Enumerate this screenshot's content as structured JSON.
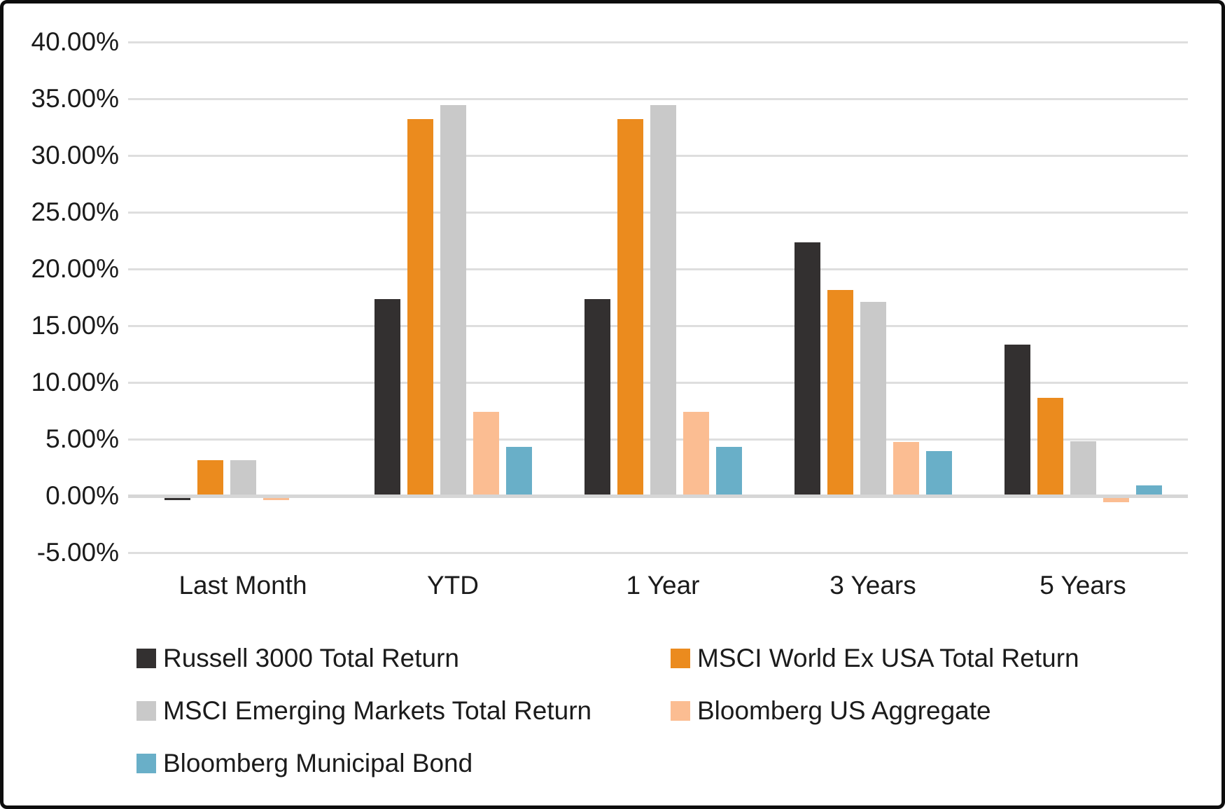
{
  "chart_data": {
    "type": "bar",
    "title": "",
    "categories": [
      "Last Month",
      "YTD",
      "1 Year",
      "3 Years",
      "5 Years"
    ],
    "series": [
      {
        "name": "Russell 3000 Total Return",
        "color": "#333030",
        "values": [
          -0.2,
          17.2,
          17.2,
          22.2,
          13.2
        ]
      },
      {
        "name": "MSCI World Ex USA Total Return",
        "color": "#EB8B1E",
        "values": [
          3.0,
          33.1,
          33.1,
          18.0,
          8.5
        ]
      },
      {
        "name": "MSCI Emerging Markets Total Return",
        "color": "#C9C9C9",
        "values": [
          3.0,
          34.3,
          34.3,
          17.0,
          4.7
        ]
      },
      {
        "name": "Bloomberg US Aggregate",
        "color": "#FBBD92",
        "values": [
          -0.2,
          7.3,
          7.3,
          4.6,
          -0.4
        ]
      },
      {
        "name": "Bloomberg Municipal Bond",
        "color": "#69AFC8",
        "values": [
          0.0,
          4.2,
          4.2,
          3.8,
          0.8
        ]
      }
    ],
    "ylim": [
      -5,
      40
    ],
    "yticks": [
      {
        "value": 40,
        "label": "40.00%"
      },
      {
        "value": 35,
        "label": "35.00%"
      },
      {
        "value": 30,
        "label": "30.00%"
      },
      {
        "value": 25,
        "label": "25.00%"
      },
      {
        "value": 20,
        "label": "20.00%"
      },
      {
        "value": 15,
        "label": "15.00%"
      },
      {
        "value": 10,
        "label": "10.00%"
      },
      {
        "value": 5,
        "label": "5.00%"
      },
      {
        "value": 0,
        "label": "0.00%"
      },
      {
        "value": -5,
        "label": "-5.00%"
      }
    ],
    "grid": true,
    "legend_position": "bottom-left",
    "value_format": "percent"
  },
  "colors": {
    "background": "#FFFFFF",
    "frame_border": "#0D0D0D",
    "gridline": "#DEDEDE",
    "axis_line": "#D6D6D6",
    "text": "#1B1B1B"
  }
}
